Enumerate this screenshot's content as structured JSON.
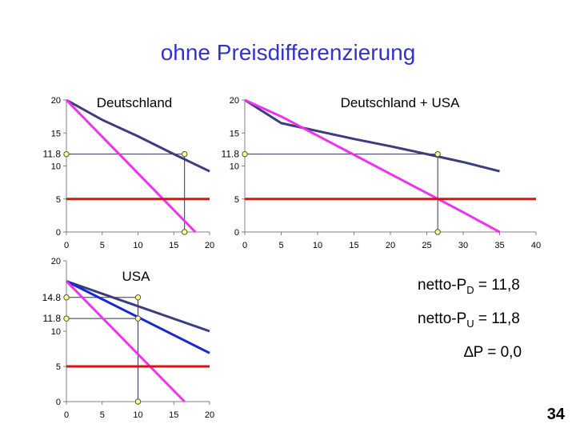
{
  "title": "ohne Preisdifferenzierung",
  "page_number": "34",
  "colors": {
    "dark_line": "#3c3c7e",
    "magenta_line": "#ee33ee",
    "blue_line": "#1a2ad0",
    "red_line": "#dd1111",
    "title": "#3333cc",
    "marker_fill": "#ffff99"
  },
  "notes": {
    "netto_pd_prefix": "netto-P",
    "netto_pd_sub": "D",
    "netto_pd_value": " = 11,8",
    "netto_pu_prefix": "netto-P",
    "netto_pu_sub": "U",
    "netto_pu_value": " = 11,8",
    "delta_p": "∆P = 0,0"
  },
  "chart_data": [
    {
      "type": "line",
      "title": "Deutschland",
      "xlim": [
        0,
        20
      ],
      "ylim": [
        0,
        20
      ],
      "xticks": [
        "0",
        "5",
        "10",
        "15",
        "20"
      ],
      "yticks": [
        "0",
        "5",
        "10",
        "15",
        "20"
      ],
      "extra_ytick": "11.8",
      "series": [
        {
          "color": "#3c3c7e",
          "x": [
            0,
            5,
            10,
            15,
            20
          ],
          "y": [
            20,
            17,
            14.5,
            11.8,
            9.2
          ]
        },
        {
          "color": "#ee33ee",
          "x": [
            0,
            18
          ],
          "y": [
            20,
            0
          ]
        },
        {
          "color": "#dd1111",
          "x": [
            0,
            20
          ],
          "y": [
            5,
            5
          ]
        }
      ],
      "markers": [
        [
          0,
          11.8
        ],
        [
          16.5,
          11.8
        ],
        [
          16.5,
          0
        ]
      ],
      "guides": [
        [
          [
            0,
            11.8
          ],
          [
            16.5,
            11.8
          ]
        ],
        [
          [
            16.5,
            11.8
          ],
          [
            16.5,
            0
          ]
        ]
      ]
    },
    {
      "type": "line",
      "title": "Deutschland + USA",
      "xlim": [
        0,
        40
      ],
      "ylim": [
        0,
        20
      ],
      "xticks": [
        "0",
        "5",
        "10",
        "15",
        "20",
        "25",
        "30",
        "35",
        "40"
      ],
      "yticks": [
        "0",
        "5",
        "10",
        "15",
        "20"
      ],
      "extra_ytick": "11.8",
      "series": [
        {
          "color": "#3c3c7e",
          "x": [
            0,
            5,
            10,
            15,
            20,
            25,
            30,
            35
          ],
          "y": [
            20,
            16.5,
            15.3,
            14.1,
            13,
            11.8,
            10.6,
            9.2
          ]
        },
        {
          "color": "#ee33ee",
          "x": [
            0,
            5,
            10,
            15,
            20,
            25,
            30,
            35
          ],
          "y": [
            20,
            17.5,
            14.6,
            11.7,
            8.8,
            5.9,
            3,
            0
          ]
        },
        {
          "color": "#dd1111",
          "x": [
            0,
            40
          ],
          "y": [
            5,
            5
          ]
        }
      ],
      "markers": [
        [
          0,
          11.8
        ],
        [
          26.5,
          11.8
        ],
        [
          26.5,
          0
        ]
      ],
      "guides": [
        [
          [
            0,
            11.8
          ],
          [
            26.5,
            11.8
          ]
        ],
        [
          [
            26.5,
            11.8
          ],
          [
            26.5,
            0
          ]
        ]
      ]
    },
    {
      "type": "line",
      "title": "USA",
      "xlim": [
        0,
        20
      ],
      "ylim": [
        0,
        20
      ],
      "xticks": [
        "0",
        "5",
        "10",
        "15",
        "20"
      ],
      "yticks": [
        "0",
        "5",
        "10",
        "20"
      ],
      "extra_yticks": [
        "11.8",
        "14.8"
      ],
      "series": [
        {
          "color": "#3c3c7e",
          "x": [
            0,
            20
          ],
          "y": [
            17.1,
            10
          ]
        },
        {
          "color": "#1a2ad0",
          "x": [
            0,
            20
          ],
          "y": [
            17.1,
            6.9
          ]
        },
        {
          "color": "#ee33ee",
          "x": [
            0,
            16.5
          ],
          "y": [
            17.1,
            0
          ]
        },
        {
          "color": "#dd1111",
          "x": [
            0,
            20
          ],
          "y": [
            5,
            5
          ]
        }
      ],
      "markers": [
        [
          0,
          14.8
        ],
        [
          10,
          14.8
        ],
        [
          0,
          11.8
        ],
        [
          10,
          11.8
        ],
        [
          10,
          0
        ]
      ],
      "guides": [
        [
          [
            0,
            14.8
          ],
          [
            10,
            14.8
          ]
        ],
        [
          [
            0,
            11.8
          ],
          [
            10,
            11.8
          ]
        ],
        [
          [
            10,
            14.8
          ],
          [
            10,
            0
          ]
        ]
      ]
    }
  ]
}
